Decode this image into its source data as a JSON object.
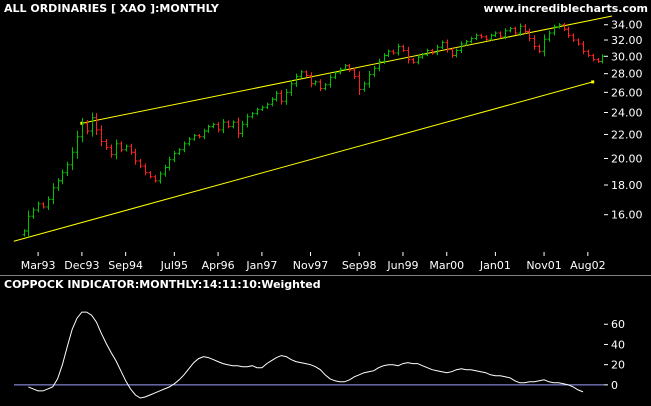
{
  "colors": {
    "background": "#000000",
    "text": "#ffffff",
    "up_bar": "#00c000",
    "down_bar": "#ff2020",
    "trendline": "#ffff00",
    "indicator_line": "#ffffff",
    "zero_line": "#a0a0ff",
    "divider": "#808080"
  },
  "chart_data": [
    {
      "type": "ohlc",
      "title": "ALL ORDINARIES [ XAO ]:MONTHLY",
      "watermark": "www.incrediblecharts.com",
      "y_scale": "log",
      "ylim": [
        14.3,
        35.2
      ],
      "y_ticks": [
        {
          "value": 16,
          "label": "16.00"
        },
        {
          "value": 18,
          "label": "18.00"
        },
        {
          "value": 20,
          "label": "20.00"
        },
        {
          "value": 22,
          "label": "22.00"
        },
        {
          "value": 24,
          "label": "24.00"
        },
        {
          "value": 26,
          "label": "26.00"
        },
        {
          "value": 28,
          "label": "28.00"
        },
        {
          "value": 30,
          "label": "30.00"
        },
        {
          "value": 32,
          "label": "32.00"
        },
        {
          "value": 34,
          "label": "34.00"
        }
      ],
      "x_ticks": [
        {
          "month": 3,
          "label": "Mar93"
        },
        {
          "month": 12,
          "label": "Dec93"
        },
        {
          "month": 21,
          "label": "Sep94"
        },
        {
          "month": 31,
          "label": "Jul95"
        },
        {
          "month": 40,
          "label": "Apr96"
        },
        {
          "month": 49,
          "label": "Jan97"
        },
        {
          "month": 59,
          "label": "Nov97"
        },
        {
          "month": 69,
          "label": "Sep98"
        },
        {
          "month": 78,
          "label": "Jun99"
        },
        {
          "month": 87,
          "label": "Mar00"
        },
        {
          "month": 97,
          "label": "Jan01"
        },
        {
          "month": 107,
          "label": "Nov01"
        },
        {
          "month": 116,
          "label": "Aug02"
        }
      ],
      "closes": [
        15.0,
        15.9,
        16.3,
        16.7,
        16.5,
        17.0,
        17.8,
        18.3,
        18.9,
        19.5,
        20.5,
        21.8,
        23.0,
        22.3,
        23.5,
        22.4,
        21.4,
        20.9,
        20.3,
        21.2,
        20.7,
        21.0,
        20.5,
        19.8,
        19.4,
        18.9,
        18.6,
        18.3,
        18.8,
        19.3,
        19.9,
        20.4,
        20.7,
        21.2,
        21.6,
        21.9,
        21.8,
        22.3,
        22.7,
        22.9,
        22.4,
        23.1,
        22.7,
        23.1,
        22.1,
        22.9,
        23.6,
        23.9,
        24.3,
        24.5,
        24.8,
        25.3,
        25.9,
        25.1,
        26.0,
        26.9,
        27.7,
        28.2,
        27.8,
        26.9,
        27.1,
        26.4,
        26.8,
        27.6,
        28.1,
        28.5,
        28.9,
        28.4,
        27.7,
        26.3,
        26.9,
        27.9,
        28.6,
        29.4,
        30.1,
        30.6,
        30.4,
        31.2,
        30.7,
        29.6,
        29.3,
        29.9,
        30.2,
        30.7,
        30.4,
        31.1,
        31.7,
        30.8,
        30.1,
        30.7,
        31.5,
        31.8,
        32.2,
        32.6,
        32.4,
        32.1,
        32.6,
        32.9,
        32.4,
        33.2,
        33.5,
        32.9,
        33.8,
        33.1,
        32.2,
        31.2,
        30.6,
        32.1,
        32.9,
        33.7,
        34.0,
        33.4,
        32.6,
        32.0,
        31.5,
        30.6,
        30.1,
        29.6,
        29.4,
        30.0
      ],
      "trendlines": [
        {
          "name": "upper-channel",
          "points": [
            [
              12,
              23.0
            ],
            [
              121,
              35.2
            ]
          ]
        },
        {
          "name": "lower-channel",
          "points": [
            [
              -2,
              14.4
            ],
            [
              117,
              27.1
            ]
          ]
        }
      ]
    },
    {
      "type": "line",
      "title": "COPPOCK INDICATOR:MONTHLY:14:11:10:Weighted",
      "ylim": [
        -14,
        84
      ],
      "zero_line": 0,
      "y_ticks": [
        {
          "value": 0,
          "label": "0"
        },
        {
          "value": 20,
          "label": "20"
        },
        {
          "value": 40,
          "label": "40"
        },
        {
          "value": 60,
          "label": "60"
        }
      ],
      "points": [
        [
          1,
          -2
        ],
        [
          2,
          -4
        ],
        [
          3,
          -6
        ],
        [
          4,
          -6
        ],
        [
          5,
          -4
        ],
        [
          6,
          -2
        ],
        [
          7,
          6
        ],
        [
          8,
          20
        ],
        [
          9,
          38
        ],
        [
          10,
          55
        ],
        [
          11,
          66
        ],
        [
          12,
          72
        ],
        [
          13,
          72
        ],
        [
          14,
          69
        ],
        [
          15,
          62
        ],
        [
          16,
          51
        ],
        [
          17,
          41
        ],
        [
          18,
          32
        ],
        [
          19,
          24
        ],
        [
          20,
          14
        ],
        [
          21,
          4
        ],
        [
          22,
          -4
        ],
        [
          23,
          -10
        ],
        [
          24,
          -13
        ],
        [
          25,
          -12
        ],
        [
          26,
          -10
        ],
        [
          27,
          -8
        ],
        [
          28,
          -6
        ],
        [
          29,
          -4
        ],
        [
          30,
          -2
        ],
        [
          31,
          1
        ],
        [
          32,
          5
        ],
        [
          33,
          10
        ],
        [
          34,
          16
        ],
        [
          35,
          22
        ],
        [
          36,
          26
        ],
        [
          37,
          28
        ],
        [
          38,
          27
        ],
        [
          39,
          25
        ],
        [
          40,
          23
        ],
        [
          41,
          21
        ],
        [
          42,
          20
        ],
        [
          43,
          19
        ],
        [
          44,
          19
        ],
        [
          45,
          18
        ],
        [
          46,
          18
        ],
        [
          47,
          19
        ],
        [
          48,
          17
        ],
        [
          49,
          17
        ],
        [
          50,
          21
        ],
        [
          51,
          24
        ],
        [
          52,
          27
        ],
        [
          53,
          29
        ],
        [
          54,
          28
        ],
        [
          55,
          25
        ],
        [
          56,
          23
        ],
        [
          57,
          22
        ],
        [
          58,
          21
        ],
        [
          59,
          20
        ],
        [
          60,
          18
        ],
        [
          61,
          15
        ],
        [
          62,
          10
        ],
        [
          63,
          6
        ],
        [
          64,
          4
        ],
        [
          65,
          3
        ],
        [
          66,
          3
        ],
        [
          67,
          5
        ],
        [
          68,
          8
        ],
        [
          69,
          10
        ],
        [
          70,
          12
        ],
        [
          71,
          13
        ],
        [
          72,
          14
        ],
        [
          73,
          17
        ],
        [
          74,
          19
        ],
        [
          75,
          20
        ],
        [
          76,
          20
        ],
        [
          77,
          19
        ],
        [
          78,
          21
        ],
        [
          79,
          22
        ],
        [
          80,
          21
        ],
        [
          81,
          21
        ],
        [
          82,
          19
        ],
        [
          83,
          17
        ],
        [
          84,
          15
        ],
        [
          85,
          14
        ],
        [
          86,
          13
        ],
        [
          87,
          12
        ],
        [
          88,
          13
        ],
        [
          89,
          15
        ],
        [
          90,
          16
        ],
        [
          91,
          15
        ],
        [
          92,
          15
        ],
        [
          93,
          14
        ],
        [
          94,
          13
        ],
        [
          95,
          12
        ],
        [
          96,
          10
        ],
        [
          97,
          9
        ],
        [
          98,
          9
        ],
        [
          99,
          8
        ],
        [
          100,
          7
        ],
        [
          101,
          4
        ],
        [
          102,
          2
        ],
        [
          103,
          2
        ],
        [
          104,
          3
        ],
        [
          105,
          3
        ],
        [
          106,
          4
        ],
        [
          107,
          5
        ],
        [
          108,
          3
        ],
        [
          109,
          2
        ],
        [
          110,
          2
        ],
        [
          111,
          1
        ],
        [
          112,
          0
        ],
        [
          113,
          -2
        ],
        [
          114,
          -5
        ],
        [
          115,
          -7
        ]
      ]
    }
  ]
}
